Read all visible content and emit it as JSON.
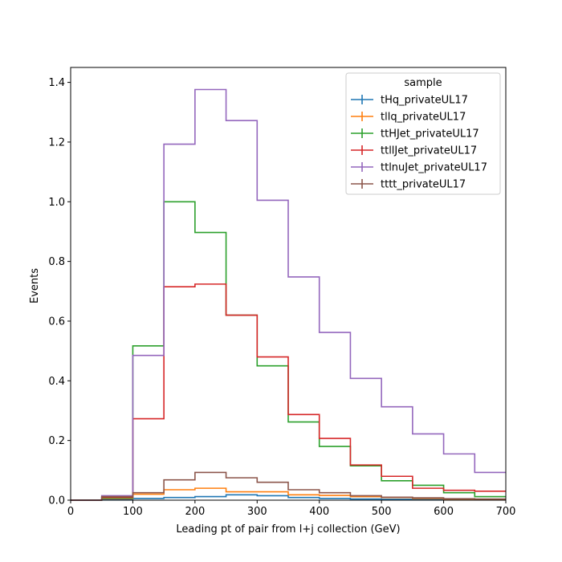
{
  "chart_data": {
    "type": "line",
    "title": "",
    "xlabel": "Leading pt of pair from l+j collection (GeV)",
    "ylabel": "Events",
    "xlim": [
      0,
      700
    ],
    "ylim": [
      0,
      1.45
    ],
    "xticks": [
      "0",
      "100",
      "200",
      "300",
      "400",
      "500",
      "600",
      "700"
    ],
    "yticks": [
      "0.0",
      "0.2",
      "0.4",
      "0.6",
      "0.8",
      "1.0",
      "1.2",
      "1.4"
    ],
    "bin_edges": [
      0,
      50,
      100,
      150,
      200,
      250,
      300,
      350,
      400,
      450,
      500,
      550,
      600,
      650,
      700
    ],
    "legend": {
      "title": "sample",
      "position": "top-right"
    },
    "series": [
      {
        "name": "tHq_privateUL17",
        "color": "#1f77b4",
        "values": [
          0,
          0.002,
          0.006,
          0.009,
          0.012,
          0.018,
          0.015,
          0.009,
          0.006,
          0.004,
          0.003,
          0.002,
          0.001,
          0.001
        ]
      },
      {
        "name": "tllq_privateUL17",
        "color": "#ff7f0e",
        "values": [
          0,
          0.006,
          0.02,
          0.035,
          0.04,
          0.028,
          0.028,
          0.018,
          0.016,
          0.012,
          0.009,
          0.006,
          0.004,
          0.003
        ]
      },
      {
        "name": "ttHJet_privateUL17",
        "color": "#2ca02c",
        "values": [
          0,
          0.008,
          0.517,
          1.0,
          0.897,
          0.62,
          0.45,
          0.262,
          0.18,
          0.115,
          0.065,
          0.05,
          0.025,
          0.012
        ]
      },
      {
        "name": "ttllJet_privateUL17",
        "color": "#d62728",
        "values": [
          0,
          0.01,
          0.273,
          0.715,
          0.724,
          0.62,
          0.48,
          0.287,
          0.207,
          0.118,
          0.08,
          0.04,
          0.033,
          0.03
        ]
      },
      {
        "name": "ttlnuJet_privateUL17",
        "color": "#9467bd",
        "values": [
          0,
          0.015,
          0.485,
          1.193,
          1.376,
          1.272,
          1.005,
          0.748,
          0.562,
          0.408,
          0.313,
          0.222,
          0.155,
          0.093
        ]
      },
      {
        "name": "tttt_privateUL17",
        "color": "#8c564b",
        "values": [
          0,
          0.012,
          0.025,
          0.068,
          0.093,
          0.075,
          0.06,
          0.035,
          0.025,
          0.015,
          0.01,
          0.008,
          0.005,
          0.004
        ]
      }
    ]
  }
}
